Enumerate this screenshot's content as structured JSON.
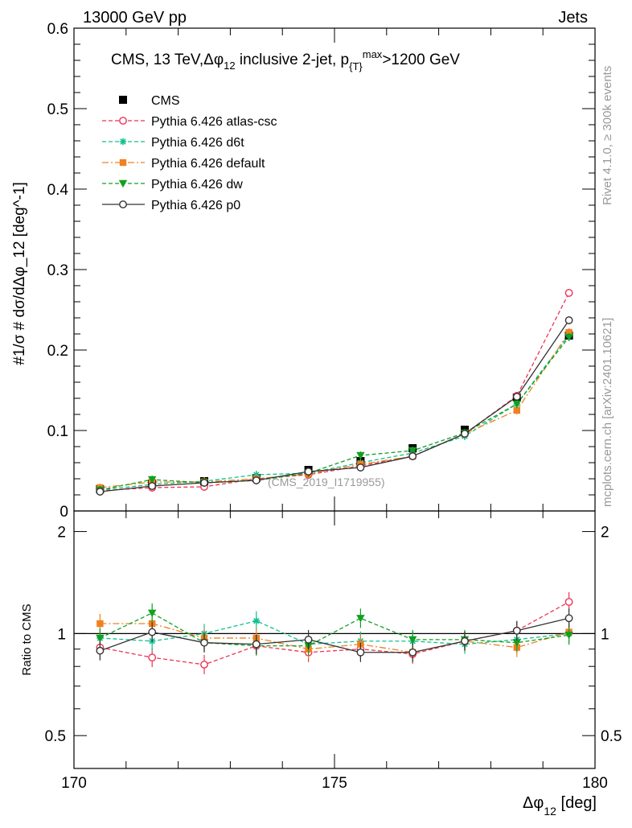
{
  "header": {
    "left": "13000 GeV pp",
    "right": "Jets"
  },
  "side_labels": {
    "rivet": "Rivet 4.1.0, ≥ 300k events",
    "mcplots": "mcplots.cern.ch [arXiv:2401.10621]"
  },
  "chart_data": [
    {
      "type": "line",
      "panel": "main",
      "title": "CMS, 13 TeV,Δφ",
      "title_sub": "12",
      "title_rest": " inclusive 2-jet,  p",
      "title_sub2": "{T}",
      "title_sup2": "max",
      "title_end": ">1200 GeV",
      "ylabel": "#1/σ # dσ/dΔφ_12 [deg^-1]",
      "watermark": "(CMS_2019_I1719955)",
      "xlim": [
        170,
        180
      ],
      "ylim": [
        0,
        0.6
      ],
      "yticks": [
        "0",
        "0.1",
        "0.2",
        "0.3",
        "0.4",
        "0.5",
        "0.6"
      ],
      "x": [
        170.5,
        171.5,
        172.5,
        173.5,
        174.5,
        175.5,
        176.5,
        177.5,
        178.5,
        179.5
      ],
      "series": [
        {
          "name": "CMS",
          "color": "#000000",
          "marker": "square",
          "line": "none",
          "values": [
            0.027,
            0.034,
            0.037,
            0.041,
            0.051,
            0.062,
            0.078,
            0.101,
            0.141,
            0.218
          ]
        },
        {
          "name": "Pythia 6.426 atlas-csc",
          "color": "#ee3355",
          "marker": "open-circle",
          "line": "dashed",
          "values": [
            0.025,
            0.029,
            0.03,
            0.04,
            0.045,
            0.056,
            0.068,
            0.096,
            0.143,
            0.271
          ]
        },
        {
          "name": "Pythia 6.426 d6t",
          "color": "#10c090",
          "marker": "star",
          "line": "dashed",
          "values": [
            0.026,
            0.033,
            0.037,
            0.045,
            0.047,
            0.06,
            0.072,
            0.093,
            0.133,
            0.219
          ]
        },
        {
          "name": "Pythia 6.426 default",
          "color": "#f08020",
          "marker": "filled-square",
          "line": "dashdot",
          "values": [
            0.029,
            0.036,
            0.036,
            0.04,
            0.046,
            0.058,
            0.068,
            0.096,
            0.125,
            0.222
          ]
        },
        {
          "name": "Pythia 6.426 dw",
          "color": "#10a020",
          "marker": "triangle-down",
          "line": "dashed",
          "values": [
            0.026,
            0.039,
            0.035,
            0.038,
            0.047,
            0.069,
            0.075,
            0.097,
            0.133,
            0.216
          ]
        },
        {
          "name": "Pythia 6.426 p0",
          "color": "#333333",
          "marker": "open-circle",
          "line": "solid",
          "values": [
            0.024,
            0.031,
            0.035,
            0.038,
            0.049,
            0.054,
            0.068,
            0.096,
            0.142,
            0.237
          ]
        }
      ]
    },
    {
      "type": "line",
      "panel": "ratio",
      "ylabel": "Ratio to CMS",
      "xlabel": "Δφ",
      "xlabel_sub": "12",
      "xlabel_unit": " [deg]",
      "xlim": [
        170,
        180
      ],
      "ylim": [
        0.4,
        2.3
      ],
      "yscale": "log",
      "yticks": [
        "0.5",
        "1",
        "2"
      ],
      "xticks": [
        "170",
        "175",
        "180"
      ],
      "reference": 1.0,
      "x": [
        170.5,
        171.5,
        172.5,
        173.5,
        174.5,
        175.5,
        176.5,
        177.5,
        178.5,
        179.5
      ],
      "series": [
        {
          "name": "Pythia 6.426 atlas-csc",
          "color": "#ee3355",
          "marker": "open-circle",
          "line": "dashed",
          "values": [
            0.91,
            0.85,
            0.81,
            0.92,
            0.88,
            0.9,
            0.87,
            0.95,
            1.02,
            1.24
          ]
        },
        {
          "name": "Pythia 6.426 d6t",
          "color": "#10c090",
          "marker": "star",
          "line": "dashed",
          "values": [
            0.97,
            0.95,
            1.0,
            1.09,
            0.93,
            0.95,
            0.95,
            0.93,
            0.96,
            1.0
          ]
        },
        {
          "name": "Pythia 6.426 default",
          "color": "#f08020",
          "marker": "filled-square",
          "line": "dashdot",
          "values": [
            1.07,
            1.07,
            0.97,
            0.97,
            0.9,
            0.93,
            0.88,
            0.95,
            0.91,
            1.01
          ]
        },
        {
          "name": "Pythia 6.426 dw",
          "color": "#10a020",
          "marker": "triangle-down",
          "line": "dashed",
          "values": [
            0.97,
            1.15,
            0.94,
            0.92,
            0.92,
            1.11,
            0.96,
            0.96,
            0.94,
            0.99
          ]
        },
        {
          "name": "Pythia 6.426 p0",
          "color": "#333333",
          "marker": "open-circle",
          "line": "solid",
          "values": [
            0.89,
            1.01,
            0.94,
            0.93,
            0.96,
            0.88,
            0.88,
            0.95,
            1.02,
            1.11
          ]
        }
      ]
    }
  ]
}
